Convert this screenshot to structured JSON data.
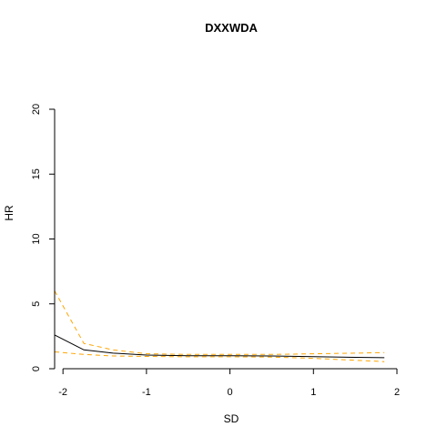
{
  "chart_data": {
    "type": "line",
    "title": "DXXWDA",
    "xlabel": "SD",
    "ylabel": "HR",
    "xlim": [
      -2.1,
      2
    ],
    "ylim": [
      0,
      20
    ],
    "x_ticks": [
      -2,
      -1,
      0,
      1,
      2
    ],
    "y_ticks": [
      0,
      5,
      10,
      15,
      20
    ],
    "grid": false,
    "legend": "none",
    "series": [
      {
        "role": "estimate",
        "color": "#000000",
        "style": "solid",
        "x": [
          -2.1,
          -1.75,
          -1.4,
          -1.0,
          -0.5,
          0,
          0.5,
          1.0,
          1.5,
          1.85
        ],
        "y": [
          2.6,
          1.45,
          1.2,
          1.05,
          1.0,
          1.0,
          0.98,
          0.93,
          0.88,
          0.85
        ]
      },
      {
        "role": "upper-bound",
        "color": "#FFA500",
        "style": "dashed",
        "x": [
          -2.1,
          -1.75,
          -1.4,
          -1.0,
          -0.5,
          0,
          0.5,
          1.0,
          1.5,
          1.85
        ],
        "y": [
          6.0,
          1.95,
          1.45,
          1.15,
          1.1,
          1.1,
          1.1,
          1.15,
          1.2,
          1.25
        ]
      },
      {
        "role": "lower-bound",
        "color": "#FFA500",
        "style": "dashed",
        "x": [
          -2.1,
          -1.75,
          -1.4,
          -1.0,
          -0.5,
          0,
          0.5,
          1.0,
          1.5,
          1.85
        ],
        "y": [
          1.3,
          1.1,
          0.98,
          0.95,
          0.92,
          0.92,
          0.9,
          0.8,
          0.65,
          0.55
        ]
      }
    ]
  }
}
